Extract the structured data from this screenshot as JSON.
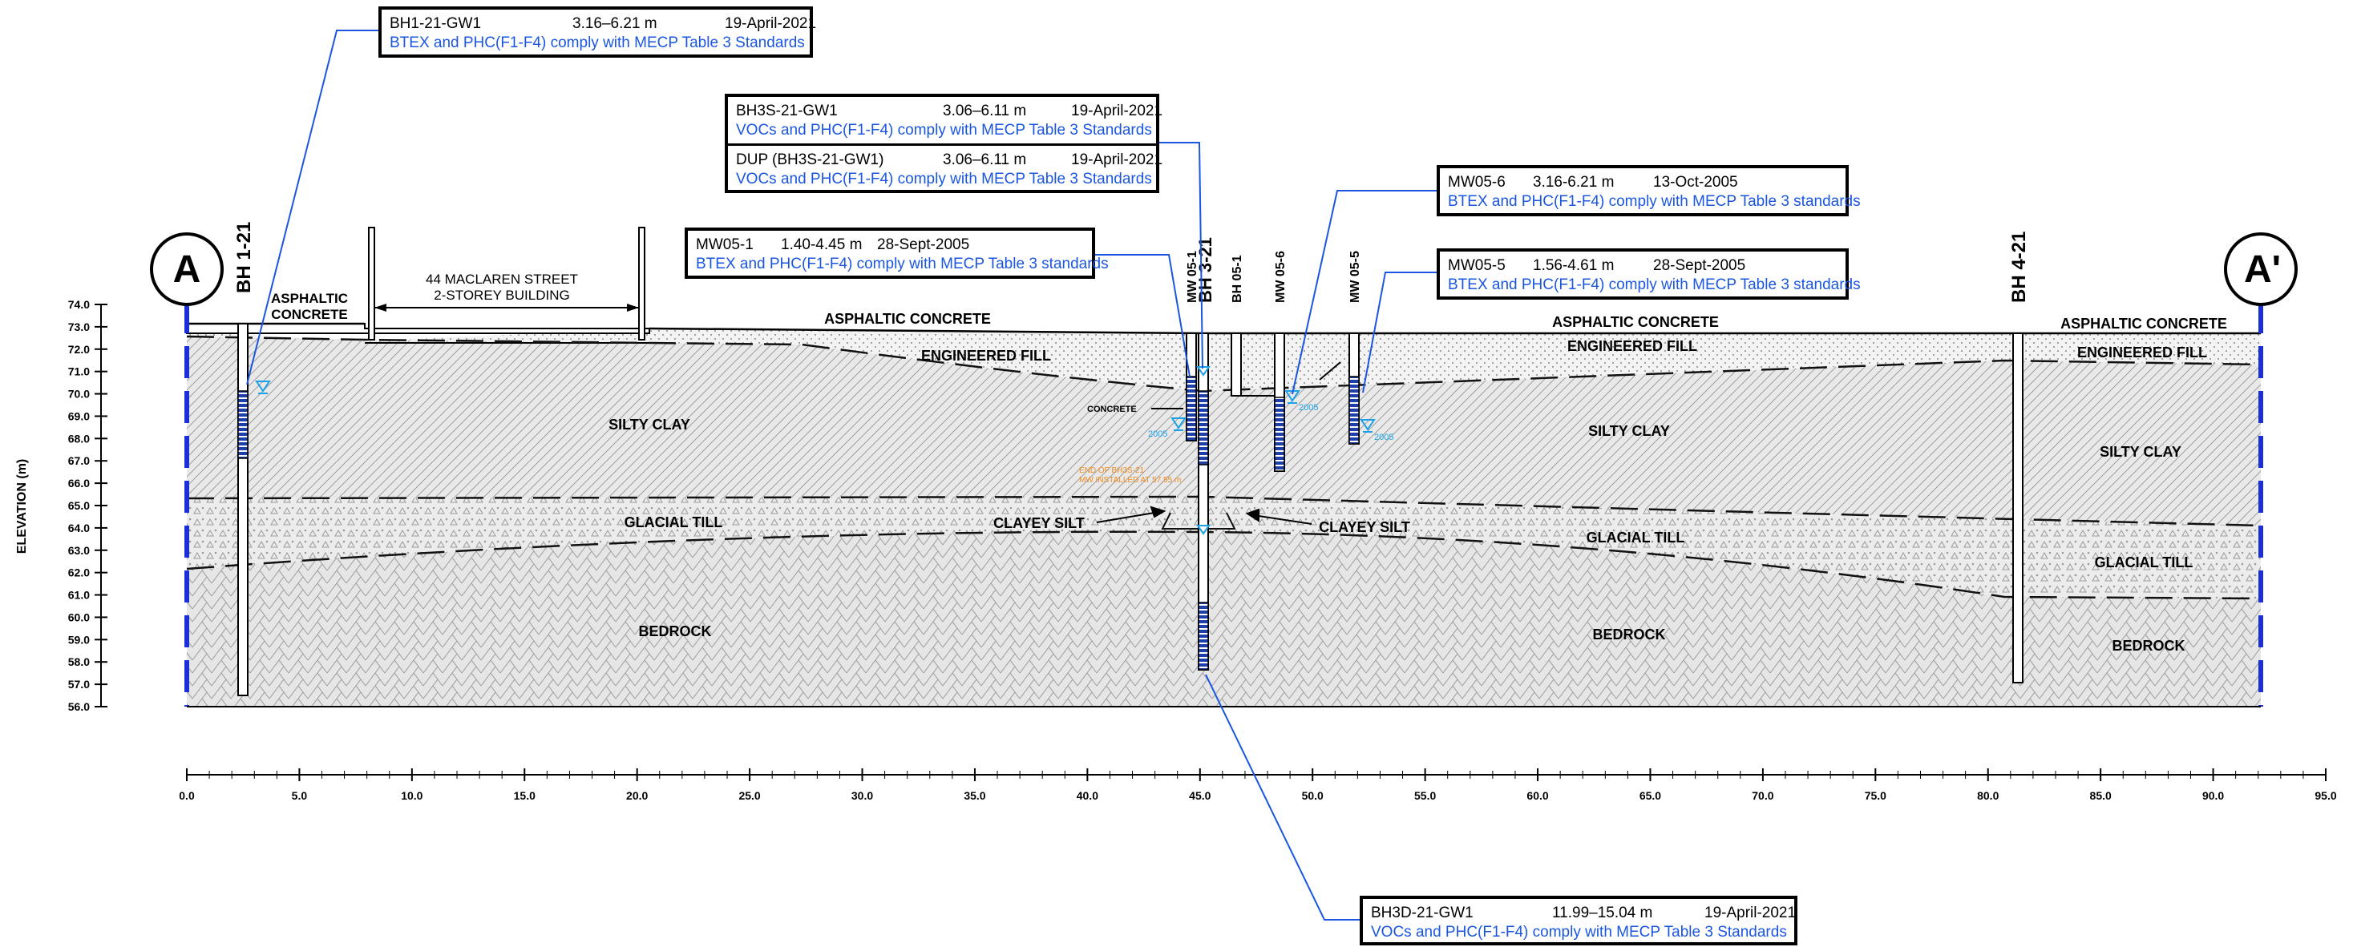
{
  "sections": {
    "left_marker": "A",
    "right_marker": "A'"
  },
  "boreholes": [
    {
      "id": "bh1-21",
      "label": "BH 1-21"
    },
    {
      "id": "mw05-1",
      "label": "MW 05-1"
    },
    {
      "id": "bh3-21",
      "label": "BH 3-21"
    },
    {
      "id": "bh05-1",
      "label": "BH 05-1"
    },
    {
      "id": "mw05-6",
      "label": "MW 05-6"
    },
    {
      "id": "mw05-5",
      "label": "MW 05-5"
    },
    {
      "id": "bh4-21",
      "label": "BH 4-21"
    }
  ],
  "building": {
    "line1": "44 MACLAREN STREET",
    "line2": "2-STOREY BUILDING"
  },
  "layers": {
    "asphaltic_concrete_left_1": "ASPHALTIC",
    "asphaltic_concrete_left_2": "CONCRETE",
    "asphaltic_concrete": "ASPHALTIC CONCRETE",
    "engineered_fill": "ENGINEERED FILL",
    "silty_clay": "SILTY CLAY",
    "glacial_till": "GLACIAL TILL",
    "clayey_silt": "CLAYEY SILT",
    "bedrock": "BEDROCK",
    "concrete": "CONCRETE"
  },
  "water_years": {
    "a": "2005",
    "b": "2005",
    "c": "2005"
  },
  "end_note": {
    "line1": "END OF BH3S-21",
    "line2": "MW INSTALLED AT 57.55 m"
  },
  "axes": {
    "y_label": "ELEVATION (m)",
    "y_ticks": [
      "74.0",
      "73.0",
      "72.0",
      "71.0",
      "70.0",
      "69.0",
      "68.0",
      "67.0",
      "66.0",
      "65.0",
      "64.0",
      "63.0",
      "62.0",
      "61.0",
      "60.0",
      "59.0",
      "58.0",
      "57.0",
      "56.0"
    ],
    "x_ticks": [
      "0.0",
      "5.0",
      "10.0",
      "15.0",
      "20.0",
      "25.0",
      "30.0",
      "35.0",
      "40.0",
      "45.0",
      "50.0",
      "55.0",
      "60.0",
      "65.0",
      "70.0",
      "75.0",
      "80.0",
      "85.0",
      "90.0",
      "95.0"
    ]
  },
  "callouts": {
    "bh1": {
      "id": "BH1-21-GW1",
      "depth": "3.16–6.21 m",
      "date": "19-April-2021",
      "result": "BTEX and PHC(F1-F4) comply with MECP Table 3 Standards"
    },
    "bh3s": {
      "id": "BH3S-21-GW1",
      "depth": "3.06–6.11 m",
      "date": "19-April-2021",
      "result": "VOCs and PHC(F1-F4) comply with MECP Table 3 Standards"
    },
    "dup": {
      "id": "DUP (BH3S-21-GW1)",
      "depth": "3.06–6.11 m",
      "date": "19-April-2021",
      "result": "VOCs and PHC(F1-F4) comply with MECP Table 3 Standards"
    },
    "mw051": {
      "id": "MW05-1",
      "depth": "1.40-4.45 m",
      "date": "28-Sept-2005",
      "result": "BTEX and PHC(F1-F4) comply with MECP Table 3 standards"
    },
    "mw056": {
      "id": "MW05-6",
      "depth": "3.16-6.21 m",
      "date": "13-Oct-2005",
      "result": "BTEX and PHC(F1-F4) comply with MECP Table 3 standards"
    },
    "mw055": {
      "id": "MW05-5",
      "depth": "1.56-4.61 m",
      "date": "28-Sept-2005",
      "result": "BTEX and PHC(F1-F4) comply with MECP Table 3 standards"
    },
    "bh3d": {
      "id": "BH3D-21-GW1",
      "depth": "11.99–15.04 m",
      "date": "19-April-2021",
      "result": "VOCs and PHC(F1-F4) comply with MECP Table 3 Standards"
    }
  },
  "colors": {
    "callout_text": "#1a56e0",
    "section_line": "#1b2fd6",
    "leader": "#1a56e0",
    "water": "#1aa0e6",
    "end_note": "#f08a1c"
  }
}
